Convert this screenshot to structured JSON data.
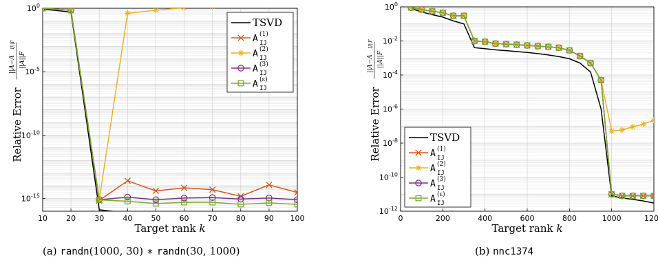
{
  "captions": [
    {
      "label": "(a)",
      "parts": [
        {
          "t": "randn",
          "mono": true
        },
        {
          "t": "(1000, 30) ∗ ",
          "mono": false
        },
        {
          "t": "randn",
          "mono": true
        },
        {
          "t": "(30, 1000)",
          "mono": false
        }
      ]
    },
    {
      "label": "(b)",
      "parts": [
        {
          "t": "nnc1374",
          "mono": true
        }
      ]
    }
  ],
  "chart_data": [
    {
      "type": "line",
      "xlabel": "Target rank k",
      "ylabel_prefix": "Relative Error",
      "ylabel_fraction": {
        "numerator": "||A−A_IJ||_F",
        "denominator": "||A||_F"
      },
      "yscale": "log",
      "xlim": [
        10,
        100
      ],
      "ylim_exp": [
        -16,
        0
      ],
      "xticks": [
        10,
        20,
        30,
        40,
        50,
        60,
        70,
        80,
        90,
        100
      ],
      "yticks_exp": [
        0,
        -5,
        -10,
        -15
      ],
      "grid": true,
      "legend": "top-right",
      "x": [
        10,
        20,
        30,
        40,
        50,
        60,
        70,
        80,
        90,
        100
      ],
      "series": [
        {
          "name": "TSVD",
          "sup": "",
          "color": "#000000",
          "marker": "none",
          "values": [
            0.85,
            0.5,
            1.3e-16,
            7e-17,
            5e-17,
            4e-17,
            3.5e-17,
            3e-17,
            2.8e-17,
            2.5e-17
          ]
        },
        {
          "name": "A",
          "sub": "IJ",
          "sup": "(1)",
          "color": "#D95319",
          "marker": "x",
          "values": [
            1.0,
            0.7,
            7e-16,
            2.5e-14,
            4e-15,
            7e-15,
            5e-15,
            1.5e-15,
            1.2e-14,
            3e-15
          ]
        },
        {
          "name": "A",
          "sub": "IJ",
          "sup": "(2)",
          "color": "#EDB120",
          "marker": "star",
          "values": [
            1.0,
            0.7,
            8e-16,
            0.4,
            0.7,
            1.1,
            1.4,
            1.8,
            2.0,
            2.2
          ]
        },
        {
          "name": "A",
          "sub": "IJ",
          "sup": "(3)",
          "color": "#7E2F8E",
          "marker": "circle",
          "values": [
            1.0,
            0.7,
            8e-16,
            1.3e-15,
            8e-16,
            1.1e-15,
            1.2e-15,
            9e-16,
            1.1e-15,
            8e-16
          ]
        },
        {
          "name": "A",
          "sub": "IJ",
          "sup": "(ε)",
          "color": "#77AC30",
          "marker": "square",
          "values": [
            1.0,
            0.7,
            8e-16,
            6e-16,
            4e-16,
            5e-16,
            5e-16,
            3.5e-16,
            4.5e-16,
            3.5e-16
          ]
        }
      ]
    },
    {
      "type": "line",
      "xlabel": "Target rank k",
      "ylabel_prefix": "Relative Error",
      "ylabel_fraction": {
        "numerator": "||A−A_IJ||_F",
        "denominator": "||A||_F"
      },
      "yscale": "log",
      "xlim": [
        0,
        1200
      ],
      "ylim_exp": [
        -12,
        0
      ],
      "xticks": [
        0,
        200,
        400,
        600,
        800,
        1000,
        1200
      ],
      "yticks_exp": [
        0,
        -2,
        -4,
        -6,
        -8,
        -10,
        -12
      ],
      "grid": true,
      "legend": "bottom-left",
      "x": [
        50,
        100,
        150,
        200,
        250,
        300,
        350,
        400,
        450,
        500,
        550,
        600,
        650,
        700,
        750,
        800,
        850,
        900,
        950,
        1000,
        1050,
        1100,
        1150,
        1200
      ],
      "series": [
        {
          "name": "TSVD",
          "sup": "",
          "color": "#000000",
          "marker": "none",
          "x": [
            50,
            100,
            150,
            200,
            250,
            300,
            350,
            400,
            450,
            500,
            550,
            600,
            650,
            700,
            750,
            800,
            850,
            900,
            950,
            1000,
            1050,
            1100,
            1150,
            1200
          ],
          "values": [
            0.8,
            0.5,
            0.35,
            0.25,
            0.15,
            0.1,
            0.004,
            0.0035,
            0.003,
            0.0027,
            0.0024,
            0.0021,
            0.0018,
            0.0015,
            0.0012,
            0.0009,
            0.0005,
            0.00015,
            1e-06,
            8e-12,
            6e-12,
            5e-12,
            4e-12,
            3e-12
          ]
        },
        {
          "name": "A",
          "sub": "IJ",
          "sup": "(1)",
          "color": "#D95319",
          "marker": "x",
          "x": [
            50,
            100,
            150,
            200,
            250,
            300,
            350,
            400,
            450,
            500,
            550,
            600,
            650,
            700,
            750,
            800,
            850,
            900,
            950,
            1000,
            1050,
            1100,
            1150,
            1200
          ],
          "values": [
            0.9,
            0.7,
            0.55,
            0.45,
            0.3,
            0.3,
            0.01,
            0.009,
            0.007,
            0.0065,
            0.006,
            0.0055,
            0.005,
            0.0045,
            0.004,
            0.0028,
            0.0013,
            0.0005,
            5e-05,
            1e-11,
            8e-12,
            8e-12,
            8e-12,
            8e-12
          ]
        },
        {
          "name": "A",
          "sub": "IJ",
          "sup": "(2)",
          "color": "#EDB120",
          "marker": "star",
          "x": [
            50,
            100,
            150,
            200,
            250,
            300,
            350,
            400,
            450,
            500,
            550,
            600,
            650,
            700,
            750,
            800,
            850,
            900,
            950,
            1000,
            1050,
            1100,
            1150,
            1200
          ],
          "values": [
            0.9,
            0.7,
            0.55,
            0.45,
            0.3,
            0.3,
            0.01,
            0.009,
            0.007,
            0.0065,
            0.006,
            0.0055,
            0.005,
            0.0045,
            0.004,
            0.0028,
            0.0013,
            0.0005,
            5e-05,
            5e-08,
            6e-08,
            9e-08,
            1.3e-07,
            2.2e-07
          ]
        },
        {
          "name": "A",
          "sub": "IJ",
          "sup": "(3)",
          "color": "#7E2F8E",
          "marker": "circle",
          "x": [
            50,
            100,
            150,
            200,
            250,
            300,
            350,
            400,
            450,
            500,
            550,
            600,
            650,
            700,
            750,
            800,
            850,
            900,
            950,
            1000,
            1050,
            1100,
            1150,
            1200
          ],
          "values": [
            0.9,
            0.7,
            0.55,
            0.45,
            0.3,
            0.3,
            0.01,
            0.009,
            0.007,
            0.0065,
            0.006,
            0.0055,
            0.005,
            0.0045,
            0.004,
            0.0028,
            0.0013,
            0.0005,
            5e-05,
            1e-11,
            8e-12,
            8e-12,
            8e-12,
            8e-12
          ]
        },
        {
          "name": "A",
          "sub": "IJ",
          "sup": "(ε)",
          "color": "#77AC30",
          "marker": "square",
          "x": [
            50,
            100,
            150,
            200,
            250,
            300,
            350,
            400,
            450,
            500,
            550,
            600,
            650,
            700,
            750,
            800,
            850,
            900,
            950,
            1000,
            1050,
            1100,
            1150,
            1200
          ],
          "values": [
            0.9,
            0.7,
            0.55,
            0.45,
            0.3,
            0.3,
            0.01,
            0.009,
            0.007,
            0.0065,
            0.006,
            0.0055,
            0.005,
            0.0045,
            0.004,
            0.0028,
            0.0013,
            0.0005,
            5e-05,
            1e-11,
            8e-12,
            8e-12,
            8e-12,
            8e-12
          ]
        }
      ]
    }
  ]
}
